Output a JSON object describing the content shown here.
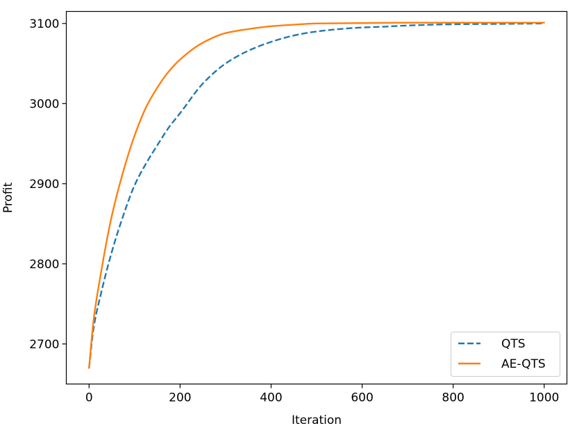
{
  "chart_data": {
    "type": "line",
    "title": "",
    "xlabel": "Iteration",
    "ylabel": "Profit",
    "xlim": [
      -50,
      1050
    ],
    "ylim": [
      2650,
      3115
    ],
    "xticks": [
      0,
      200,
      400,
      600,
      800,
      1000
    ],
    "yticks": [
      2700,
      2800,
      2900,
      3000,
      3100
    ],
    "xtick_labels": [
      "0",
      "200",
      "400",
      "600",
      "800",
      "1000"
    ],
    "ytick_labels": [
      "2700",
      "2800",
      "2900",
      "3000",
      "3100"
    ],
    "grid": false,
    "legend_position": "lower-right",
    "series": [
      {
        "name": "QTS",
        "color": "#1f77b4",
        "style": "dashed",
        "x": [
          0,
          10,
          25,
          50,
          75,
          100,
          125,
          150,
          175,
          200,
          250,
          300,
          350,
          400,
          450,
          500,
          550,
          600,
          650,
          700,
          800,
          900,
          1000
        ],
        "y": [
          2670,
          2720,
          2760,
          2815,
          2860,
          2898,
          2925,
          2948,
          2970,
          2988,
          3025,
          3050,
          3066,
          3077,
          3085,
          3090,
          3093,
          3095,
          3096,
          3097.5,
          3099,
          3099.5,
          3100
        ]
      },
      {
        "name": "AE-QTS",
        "color": "#ff7f0e",
        "style": "solid",
        "x": [
          0,
          10,
          25,
          50,
          75,
          100,
          125,
          150,
          175,
          200,
          250,
          300,
          350,
          400,
          450,
          500,
          600,
          700,
          800,
          900,
          1000
        ],
        "y": [
          2670,
          2730,
          2785,
          2860,
          2915,
          2960,
          2995,
          3020,
          3040,
          3055,
          3076,
          3088,
          3093,
          3096.5,
          3098.5,
          3100,
          3100.5,
          3101,
          3101,
          3101,
          3101
        ]
      }
    ]
  }
}
